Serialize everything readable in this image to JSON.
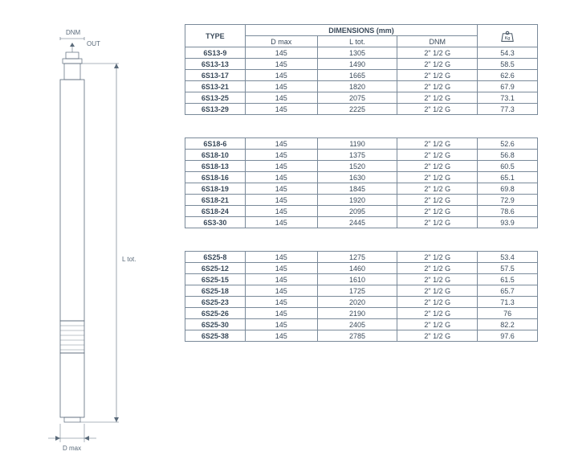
{
  "diagram": {
    "label_dnm": "DNM",
    "label_out": "OUT",
    "label_ltot": "L  tot.",
    "label_dmax": "D  max"
  },
  "headers": {
    "type": "TYPE",
    "dimensions": "DIMENSIONS (mm)",
    "dmax": "D max",
    "ltot": "L tot.",
    "dnm": "DNM",
    "kg": "Kg"
  },
  "table1": {
    "rows": [
      {
        "type": "6S13-9",
        "dmax": "145",
        "ltot": "1305",
        "dnm": "2\" 1/2 G",
        "kg": "54.3"
      },
      {
        "type": "6S13-13",
        "dmax": "145",
        "ltot": "1490",
        "dnm": "2\" 1/2 G",
        "kg": "58.5"
      },
      {
        "type": "6S13-17",
        "dmax": "145",
        "ltot": "1665",
        "dnm": "2\" 1/2 G",
        "kg": "62.6"
      },
      {
        "type": "6S13-21",
        "dmax": "145",
        "ltot": "1820",
        "dnm": "2\" 1/2 G",
        "kg": "67.9"
      },
      {
        "type": "6S13-25",
        "dmax": "145",
        "ltot": "2075",
        "dnm": "2\" 1/2 G",
        "kg": "73.1"
      },
      {
        "type": "6S13-29",
        "dmax": "145",
        "ltot": "2225",
        "dnm": "2\" 1/2 G",
        "kg": "77.3"
      }
    ]
  },
  "table2": {
    "rows": [
      {
        "type": "6S18-6",
        "dmax": "145",
        "ltot": "1190",
        "dnm": "2\" 1/2 G",
        "kg": "52.6"
      },
      {
        "type": "6S18-10",
        "dmax": "145",
        "ltot": "1375",
        "dnm": "2\" 1/2 G",
        "kg": "56.8"
      },
      {
        "type": "6S18-13",
        "dmax": "145",
        "ltot": "1520",
        "dnm": "2\" 1/2 G",
        "kg": "60.5"
      },
      {
        "type": "6S18-16",
        "dmax": "145",
        "ltot": "1630",
        "dnm": "2\" 1/2 G",
        "kg": "65.1"
      },
      {
        "type": "6S18-19",
        "dmax": "145",
        "ltot": "1845",
        "dnm": "2\" 1/2 G",
        "kg": "69.8"
      },
      {
        "type": "6S18-21",
        "dmax": "145",
        "ltot": "1920",
        "dnm": "2\" 1/2 G",
        "kg": "72.9"
      },
      {
        "type": "6S18-24",
        "dmax": "145",
        "ltot": "2095",
        "dnm": "2\" 1/2 G",
        "kg": "78.6"
      },
      {
        "type": "6S3-30",
        "dmax": "145",
        "ltot": "2445",
        "dnm": "2\" 1/2 G",
        "kg": "93.9"
      }
    ]
  },
  "table3": {
    "rows": [
      {
        "type": "6S25-8",
        "dmax": "145",
        "ltot": "1275",
        "dnm": "2\" 1/2 G",
        "kg": "53.4"
      },
      {
        "type": "6S25-12",
        "dmax": "145",
        "ltot": "1460",
        "dnm": "2\" 1/2 G",
        "kg": "57.5"
      },
      {
        "type": "6S25-15",
        "dmax": "145",
        "ltot": "1610",
        "dnm": "2\" 1/2 G",
        "kg": "61.5"
      },
      {
        "type": "6S25-18",
        "dmax": "145",
        "ltot": "1725",
        "dnm": "2\" 1/2 G",
        "kg": "65.7"
      },
      {
        "type": "6S25-23",
        "dmax": "145",
        "ltot": "2020",
        "dnm": "2\" 1/2 G",
        "kg": "71.3"
      },
      {
        "type": "6S25-26",
        "dmax": "145",
        "ltot": "2190",
        "dnm": "2\" 1/2 G",
        "kg": "76"
      },
      {
        "type": "6S25-30",
        "dmax": "145",
        "ltot": "2405",
        "dnm": "2\" 1/2 G",
        "kg": "82.2"
      },
      {
        "type": "6S25-38",
        "dmax": "145",
        "ltot": "2785",
        "dnm": "2\" 1/2 G",
        "kg": "97.6"
      }
    ]
  },
  "style": {
    "border_color": "#7a8a9a",
    "text_color": "#3a4a5a",
    "font_size": 9,
    "col_widths": {
      "type": 75,
      "dmax": 90,
      "ltot": 100,
      "dnm": 100,
      "kg": 75
    }
  }
}
